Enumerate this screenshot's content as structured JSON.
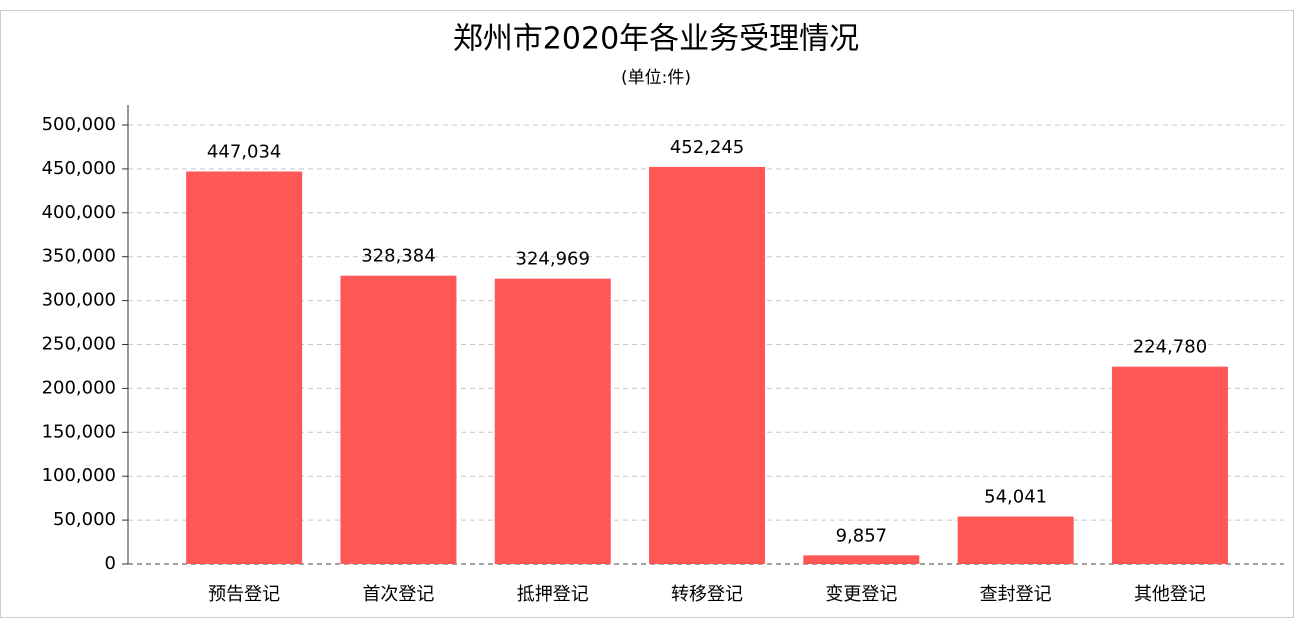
{
  "chart_data": {
    "type": "bar",
    "title": "郑州市2020年各业务受理情况",
    "subtitle": "(单位:件)",
    "categories": [
      "预告登记",
      "首次登记",
      "抵押登记",
      "转移登记",
      "变更登记",
      "查封登记",
      "其他登记"
    ],
    "values": [
      447034,
      328384,
      324969,
      452245,
      9857,
      54041,
      224780
    ],
    "value_labels": [
      "447,034",
      "328,384",
      "324,969",
      "452,245",
      "9,857",
      "54,041",
      "224,780"
    ],
    "color": "#ff5656",
    "ylim": [
      0,
      500000
    ],
    "yticks": [
      0,
      {
        "value": 50000,
        "label": "50,000"
      },
      {
        "value": 100000,
        "label": "100,000"
      },
      {
        "value": 150000,
        "label": "150,000"
      },
      {
        "value": 200000,
        "label": "200,000"
      },
      {
        "value": 250000,
        "label": "250,000"
      },
      {
        "value": 300000,
        "label": "300,000"
      },
      {
        "value": 350000,
        "label": "350,000"
      },
      {
        "value": 400000,
        "label": "400,000"
      },
      {
        "value": 450000,
        "label": "450,000"
      },
      {
        "value": 500000,
        "label": "500,000"
      }
    ],
    "grid": true
  }
}
